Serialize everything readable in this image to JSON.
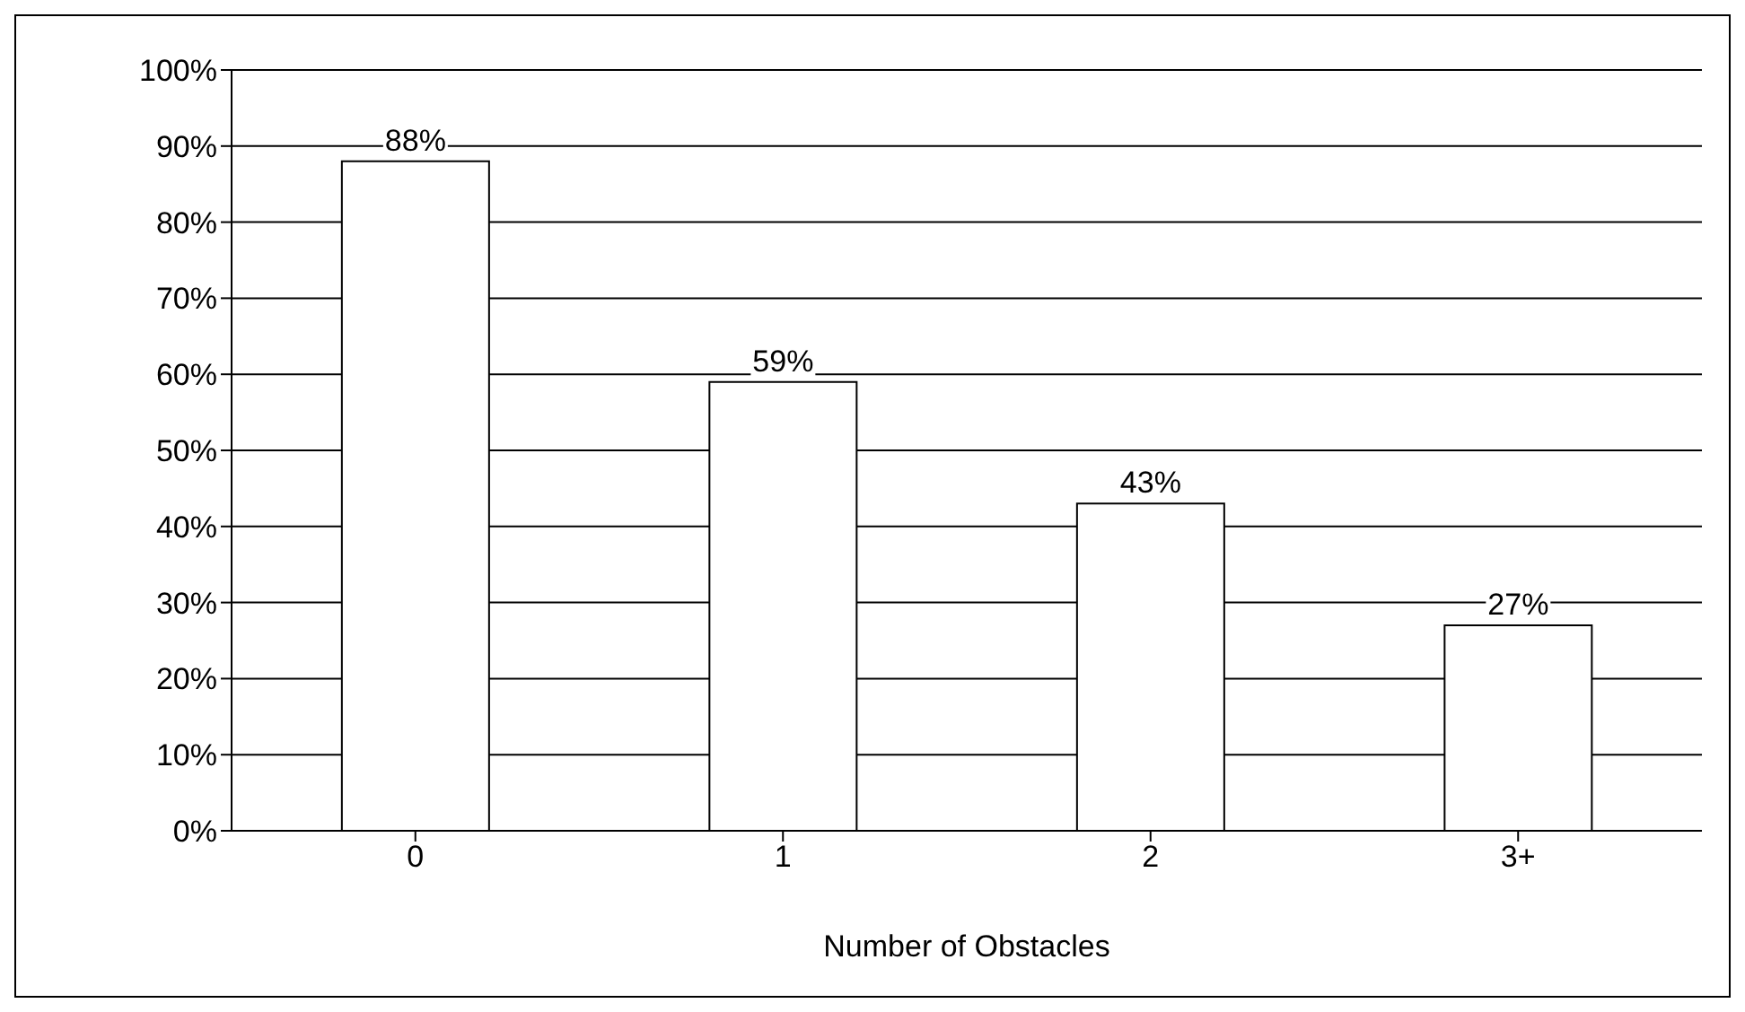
{
  "chart_data": {
    "type": "bar",
    "xlabel": "Number of Obstacles",
    "categories": [
      "0",
      "1",
      "2",
      "3+"
    ],
    "values": [
      88,
      59,
      43,
      27
    ],
    "value_labels": [
      "88%",
      "59%",
      "43%",
      "27%"
    ],
    "color": "#ffffff",
    "ylim": [
      0,
      100
    ],
    "yticks": [
      {
        "value": 0,
        "label": "0%"
      },
      {
        "value": 10,
        "label": "10%"
      },
      {
        "value": 20,
        "label": "20%"
      },
      {
        "value": 30,
        "label": "30%"
      },
      {
        "value": 40,
        "label": "40%"
      },
      {
        "value": 50,
        "label": "50%"
      },
      {
        "value": 60,
        "label": "60%"
      },
      {
        "value": 70,
        "label": "70%"
      },
      {
        "value": 80,
        "label": "80%"
      },
      {
        "value": 90,
        "label": "90%"
      },
      {
        "value": 100,
        "label": "100%"
      }
    ],
    "grid": "y",
    "legend": false
  }
}
